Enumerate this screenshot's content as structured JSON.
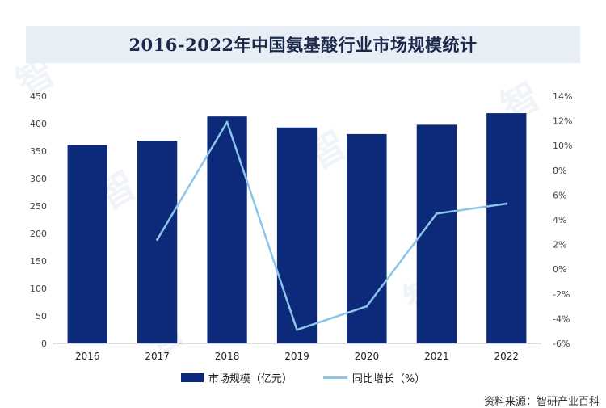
{
  "page": {
    "source": "资料来源：智研产业百科"
  },
  "chart_data": {
    "type": "bar",
    "title": "2016-2022年中国氨基酸行业市场规模统计",
    "categories": [
      "2016",
      "2017",
      "2018",
      "2019",
      "2020",
      "2021",
      "2022"
    ],
    "series": [
      {
        "name": "市场规模（亿元）",
        "type": "bar",
        "axis": "left",
        "color": "#0d2a7a",
        "values": [
          361,
          369,
          413,
          393,
          381,
          398,
          419
        ]
      },
      {
        "name": "同比增长（%）",
        "type": "line",
        "axis": "right",
        "color": "#8cc5ea",
        "values": [
          null,
          2.4,
          11.9,
          -4.9,
          -3.0,
          4.5,
          5.3
        ]
      }
    ],
    "ylim_left": [
      0,
      450
    ],
    "yticks_left": [
      "0",
      "50",
      "100",
      "150",
      "200",
      "250",
      "300",
      "350",
      "400",
      "450"
    ],
    "ylim_right": [
      -6,
      14
    ],
    "yticks_right": [
      "-6%",
      "-4%",
      "-2%",
      "0%",
      "2%",
      "4%",
      "6%",
      "8%",
      "10%",
      "12%",
      "14%"
    ],
    "xlabel": "",
    "ylabel": "",
    "legend_position": "bottom"
  }
}
